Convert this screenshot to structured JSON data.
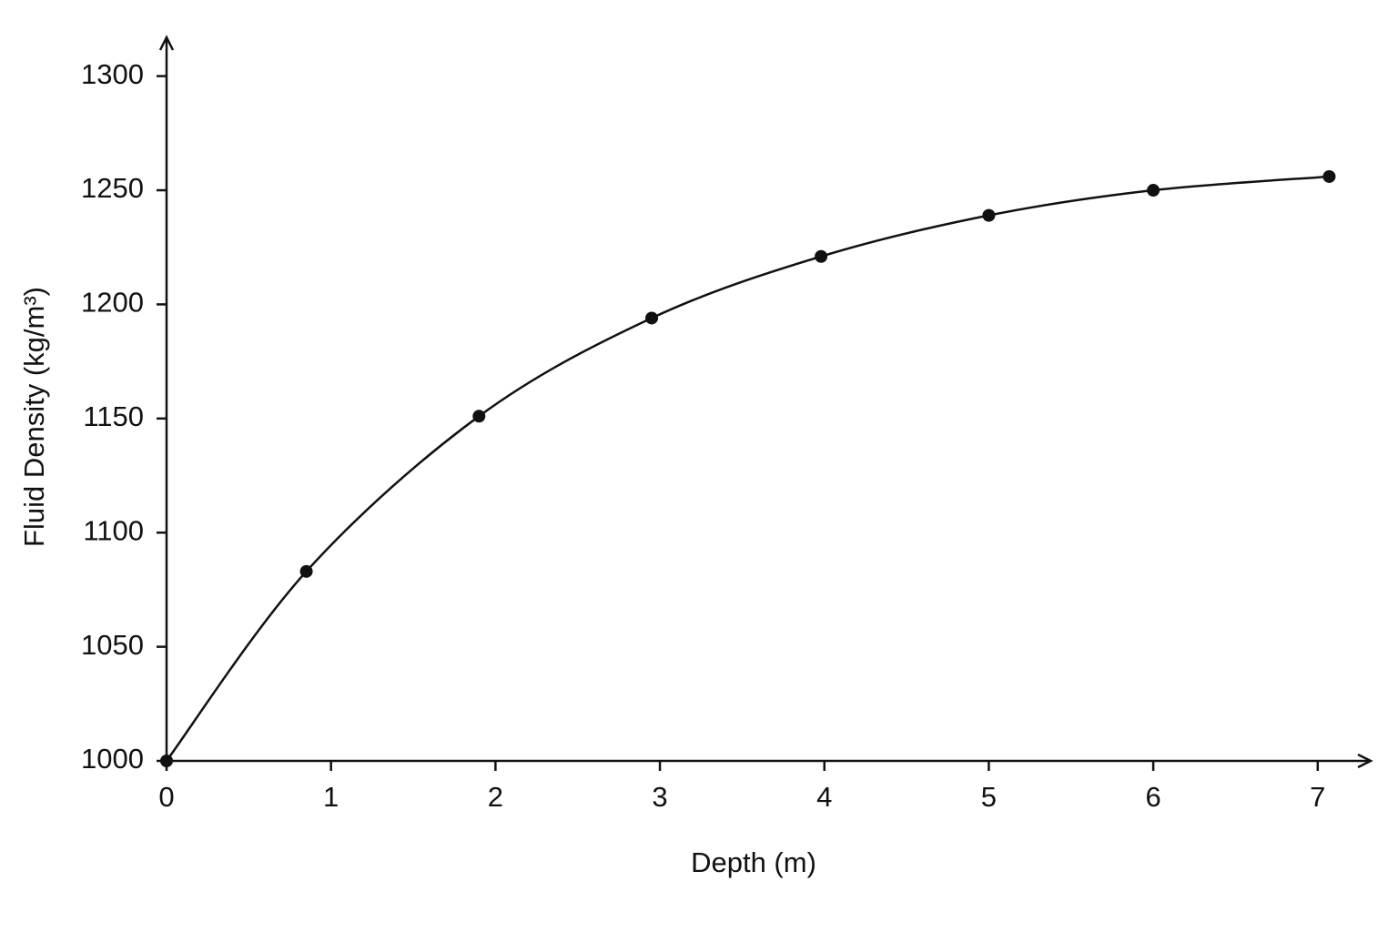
{
  "chart_data": {
    "type": "line",
    "x_label": "Depth (m)",
    "y_label": "Fluid Density (kg/m³)",
    "x": [
      0,
      0.85,
      1.9,
      2.95,
      3.98,
      5.0,
      6.0,
      7.07
    ],
    "values": [
      1000,
      1083,
      1151,
      1194,
      1221,
      1239,
      1250,
      1256
    ],
    "color": "#111111",
    "markers": true,
    "smooth": true,
    "xlim": [
      0,
      7.3
    ],
    "xticks": [
      0,
      1,
      2,
      3,
      4,
      5,
      6,
      7
    ],
    "ylim": [
      1000,
      1317
    ],
    "yticks": [
      1000,
      1050,
      1100,
      1150,
      1200,
      1250,
      1300
    ],
    "grid": false
  }
}
